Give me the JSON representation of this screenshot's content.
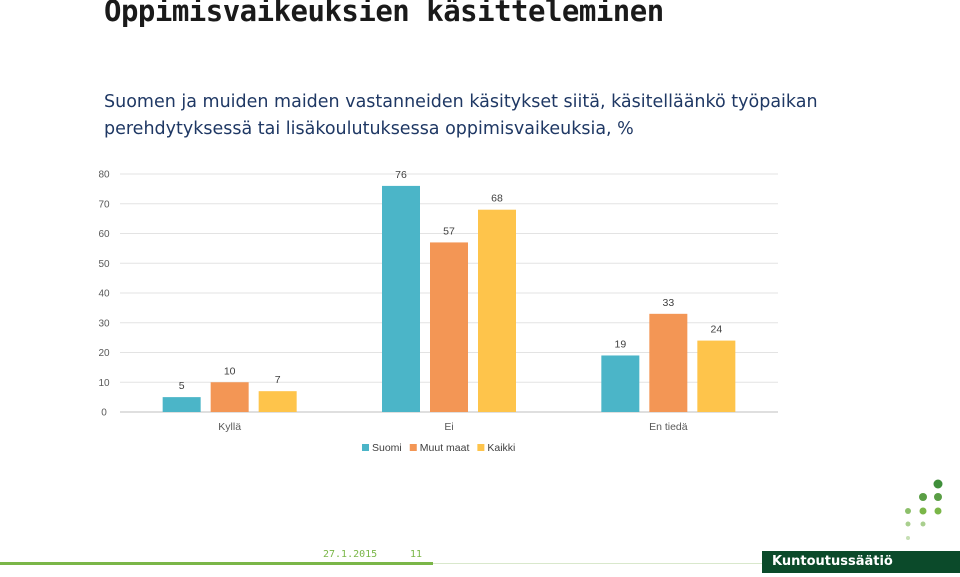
{
  "page": {
    "title": "Oppimisvaikeuksien käsitteleminen",
    "subtitle_line1": "Suomen ja muiden maiden vastanneiden käsitykset siitä, käsitelläänkö työpaikan",
    "subtitle_line2": "perehdytyksessä tai lisäkoulutuksessa oppimisvaikeuksia, %"
  },
  "chart_data": {
    "type": "bar",
    "categories": [
      "Kyllä",
      "Ei",
      "En tiedä"
    ],
    "series": [
      {
        "name": "Suomi",
        "values": [
          5,
          76,
          19
        ],
        "color": "#4bb5c8"
      },
      {
        "name": "Muut maat",
        "values": [
          10,
          57,
          33
        ],
        "color": "#f39655"
      },
      {
        "name": "Kaikki",
        "values": [
          7,
          68,
          24
        ],
        "color": "#fec44b"
      }
    ],
    "ylim": [
      0,
      80
    ],
    "yticks": [
      0,
      10,
      20,
      30,
      40,
      50,
      60,
      70,
      80
    ],
    "grid": true,
    "legend": "bottom"
  },
  "footer": {
    "date": "27.1.2015",
    "page_number": "11",
    "brand": "Kuntoutussäätiö"
  },
  "colors": {
    "accent_green": "#7ab648",
    "brand_bg": "#0b4a2a"
  }
}
